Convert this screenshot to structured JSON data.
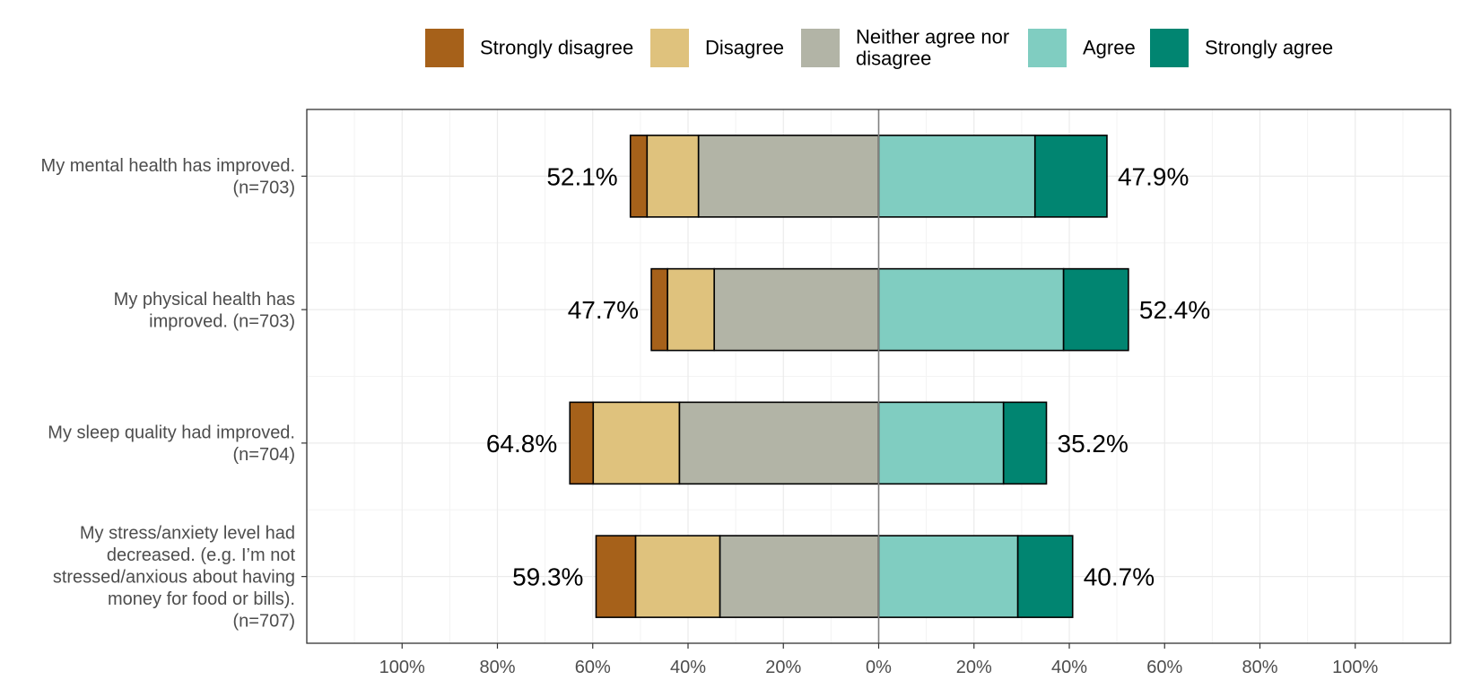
{
  "chart_data": {
    "type": "bar",
    "orientation": "horizontal",
    "stacked": "diverging",
    "title": "",
    "xlabel": "",
    "ylabel": "",
    "xlim": [
      -120,
      120
    ],
    "grid": true,
    "legend": "top",
    "x_ticks": [
      {
        "value": -100,
        "label": "100%"
      },
      {
        "value": -80,
        "label": "80%"
      },
      {
        "value": -60,
        "label": "60%"
      },
      {
        "value": -40,
        "label": "40%"
      },
      {
        "value": -20,
        "label": "20%"
      },
      {
        "value": 0,
        "label": "0%"
      },
      {
        "value": 20,
        "label": "20%"
      },
      {
        "value": 40,
        "label": "40%"
      },
      {
        "value": 60,
        "label": "60%"
      },
      {
        "value": 80,
        "label": "80%"
      },
      {
        "value": 100,
        "label": "100%"
      }
    ],
    "series": [
      {
        "name": "Strongly disagree",
        "label_lines": [
          "Strongly disagree"
        ],
        "color": "#A6611A",
        "side": "left"
      },
      {
        "name": "Disagree",
        "label_lines": [
          "Disagree"
        ],
        "color": "#DFC27D",
        "side": "left"
      },
      {
        "name": "Neither agree nor disagree",
        "label_lines": [
          "Neither agree nor",
          "disagree"
        ],
        "color": "#B2B4A6",
        "side": "left"
      },
      {
        "name": "Agree",
        "label_lines": [
          "Agree"
        ],
        "color": "#80CDC1",
        "side": "right"
      },
      {
        "name": "Strongly agree",
        "label_lines": [
          "Strongly agree"
        ],
        "color": "#018571",
        "side": "right"
      }
    ],
    "categories": [
      {
        "label_lines": [
          "My mental health has improved.",
          "(n=703)"
        ],
        "values": [
          3.5,
          10.8,
          37.8,
          32.8,
          15.1
        ],
        "left_total_label": "52.1%",
        "right_total_label": "47.9%"
      },
      {
        "label_lines": [
          "My physical health has",
          "improved. (n=703)"
        ],
        "values": [
          3.4,
          9.8,
          34.5,
          38.8,
          13.6
        ],
        "left_total_label": "47.7%",
        "right_total_label": "52.4%"
      },
      {
        "label_lines": [
          "My sleep quality had improved.",
          "(n=704)"
        ],
        "values": [
          4.9,
          18.1,
          41.8,
          26.2,
          9.0
        ],
        "left_total_label": "64.8%",
        "right_total_label": "35.2%"
      },
      {
        "label_lines": [
          "My stress/anxiety level had",
          "decreased. (e.g. I’m not",
          "stressed/anxious about having",
          "money for food or bills).",
          "(n=707)"
        ],
        "values": [
          8.3,
          17.7,
          33.3,
          29.2,
          11.5
        ],
        "left_total_label": "59.3%",
        "right_total_label": "40.7%"
      }
    ]
  }
}
